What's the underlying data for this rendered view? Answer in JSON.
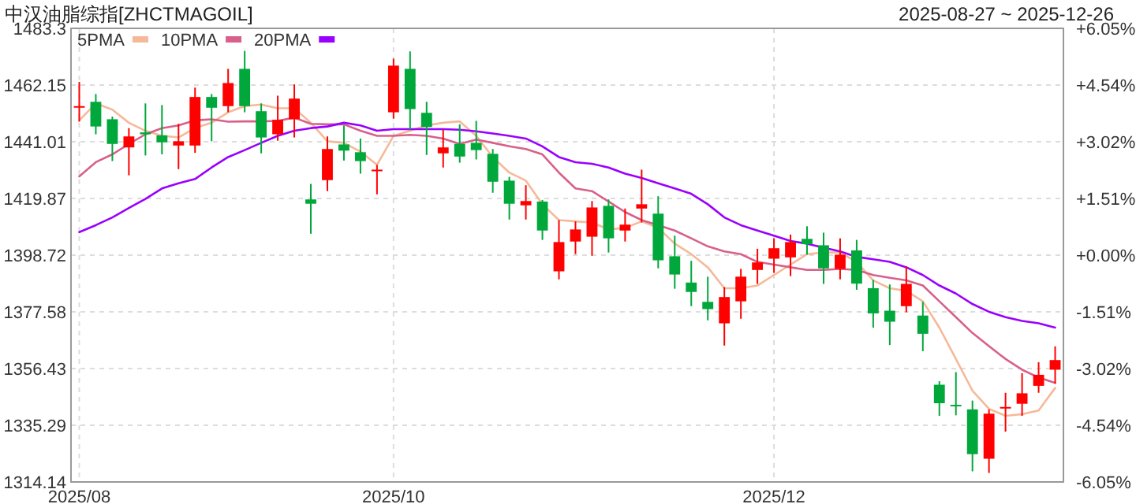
{
  "chart_data": {
    "type": "candlestick",
    "title": "中汉油脂综指[ZHCTMAGOIL]",
    "subtitle": "2025-08-27 ~ 2025-12-26",
    "categories": [
      "2025/08",
      null,
      null,
      null,
      null,
      null,
      null,
      null,
      null,
      null,
      null,
      null,
      null,
      null,
      null,
      null,
      null,
      null,
      null,
      "2025/10",
      null,
      null,
      null,
      null,
      null,
      null,
      null,
      null,
      null,
      null,
      null,
      null,
      null,
      null,
      null,
      null,
      null,
      null,
      null,
      null,
      null,
      null,
      "2025/12",
      null,
      null,
      null,
      null,
      null,
      null,
      null,
      null,
      null,
      null,
      null,
      null,
      null,
      null,
      null,
      null,
      null
    ],
    "ohlc": [
      [
        1453.9,
        1463.3,
        1448.5,
        1454.3
      ],
      [
        1455.9,
        1458.8,
        1443.8,
        1446.7
      ],
      [
        1449.4,
        1450.4,
        1433.8,
        1440.2
      ],
      [
        1438.9,
        1446.1,
        1428.5,
        1443.0
      ],
      [
        1444.5,
        1455.3,
        1435.9,
        1443.8
      ],
      [
        1443.4,
        1454.7,
        1436.3,
        1440.8
      ],
      [
        1439.6,
        1447.7,
        1430.8,
        1441.2
      ],
      [
        1439.6,
        1461.2,
        1436.9,
        1457.7
      ],
      [
        1457.7,
        1458.8,
        1441.2,
        1453.7
      ],
      [
        1454.3,
        1468.2,
        1452.0,
        1462.9
      ],
      [
        1468.2,
        1474.9,
        1452.0,
        1454.3
      ],
      [
        1452.4,
        1455.3,
        1436.7,
        1442.6
      ],
      [
        1443.8,
        1458.2,
        1441.4,
        1449.2
      ],
      [
        1449.4,
        1462.4,
        1442.6,
        1457.1
      ],
      [
        1419.5,
        1425.3,
        1406.7,
        1417.9
      ],
      [
        1426.7,
        1443.0,
        1422.6,
        1438.3
      ],
      [
        1440.0,
        1447.1,
        1434.0,
        1437.7
      ],
      [
        1437.1,
        1442.2,
        1429.1,
        1433.8
      ],
      [
        1430.2,
        1432.4,
        1421.4,
        1430.6
      ],
      [
        1452.0,
        1472.0,
        1449.6,
        1469.4
      ],
      [
        1468.2,
        1474.7,
        1445.5,
        1453.2
      ],
      [
        1451.8,
        1455.9,
        1436.1,
        1446.5
      ],
      [
        1436.7,
        1445.5,
        1431.4,
        1438.9
      ],
      [
        1440.2,
        1447.5,
        1433.2,
        1435.5
      ],
      [
        1440.6,
        1448.8,
        1434.4,
        1437.9
      ],
      [
        1436.5,
        1438.3,
        1422.0,
        1426.1
      ],
      [
        1426.5,
        1427.9,
        1412.0,
        1417.9
      ],
      [
        1417.3,
        1424.8,
        1412.0,
        1418.9
      ],
      [
        1418.7,
        1419.3,
        1404.4,
        1407.9
      ],
      [
        1392.7,
        1411.8,
        1389.7,
        1403.6
      ],
      [
        1403.8,
        1411.3,
        1399.1,
        1408.3
      ],
      [
        1405.6,
        1418.9,
        1398.5,
        1416.5
      ],
      [
        1417.1,
        1419.5,
        1399.7,
        1405.0
      ],
      [
        1407.9,
        1416.1,
        1403.8,
        1410.1
      ],
      [
        1416.1,
        1430.6,
        1410.9,
        1417.7
      ],
      [
        1414.2,
        1420.7,
        1393.8,
        1396.8
      ],
      [
        1398.3,
        1406.0,
        1386.2,
        1391.5
      ],
      [
        1388.5,
        1396.6,
        1379.7,
        1385.0
      ],
      [
        1381.3,
        1390.7,
        1374.4,
        1378.6
      ],
      [
        1373.3,
        1386.8,
        1365.0,
        1383.1
      ],
      [
        1381.5,
        1393.6,
        1375.0,
        1390.7
      ],
      [
        1393.2,
        1401.1,
        1388.0,
        1396.0
      ],
      [
        1397.4,
        1405.0,
        1392.1,
        1401.3
      ],
      [
        1397.9,
        1406.4,
        1390.9,
        1403.6
      ],
      [
        1404.8,
        1409.5,
        1398.9,
        1402.8
      ],
      [
        1402.4,
        1407.1,
        1388.0,
        1393.8
      ],
      [
        1393.6,
        1405.0,
        1389.7,
        1398.9
      ],
      [
        1400.5,
        1404.4,
        1385.8,
        1388.1
      ],
      [
        1386.4,
        1389.5,
        1371.7,
        1377.0
      ],
      [
        1378.0,
        1387.8,
        1365.2,
        1373.9
      ],
      [
        1379.7,
        1394.6,
        1377.4,
        1388.0
      ],
      [
        1376.2,
        1381.3,
        1362.9,
        1369.4
      ],
      [
        1350.4,
        1351.7,
        1338.8,
        1343.5
      ],
      [
        1342.9,
        1355.1,
        1339.0,
        1342.5
      ],
      [
        1341.2,
        1344.5,
        1318.1,
        1324.5
      ],
      [
        1322.8,
        1341.2,
        1317.5,
        1339.6
      ],
      [
        1341.7,
        1347.4,
        1332.9,
        1342.1
      ],
      [
        1343.3,
        1354.7,
        1338.8,
        1347.2
      ],
      [
        1350.0,
        1358.8,
        1347.4,
        1354.1
      ],
      [
        1356.0,
        1364.7,
        1350.8,
        1359.6
      ]
    ],
    "colors": [
      "#ff0000",
      "#00a83b",
      "#00a83b",
      "#ff0000",
      "#00a83b",
      "#00a83b",
      "#ff0000",
      "#ff0000",
      "#00a83b",
      "#ff0000",
      "#00a83b",
      "#00a83b",
      "#ff0000",
      "#ff0000",
      "#00a83b",
      "#ff0000",
      "#00a83b",
      "#00a83b",
      "#ff0000",
      "#ff0000",
      "#00a83b",
      "#00a83b",
      "#ff0000",
      "#00a83b",
      "#00a83b",
      "#00a83b",
      "#00a83b",
      "#ff0000",
      "#00a83b",
      "#ff0000",
      "#ff0000",
      "#ff0000",
      "#00a83b",
      "#ff0000",
      "#ff0000",
      "#00a83b",
      "#00a83b",
      "#00a83b",
      "#00a83b",
      "#ff0000",
      "#ff0000",
      "#ff0000",
      "#ff0000",
      "#ff0000",
      "#00a83b",
      "#00a83b",
      "#ff0000",
      "#00a83b",
      "#00a83b",
      "#00a83b",
      "#ff0000",
      "#00a83b",
      "#00a83b",
      "#00a83b",
      "#00a83b",
      "#ff0000",
      "#ff0000",
      "#ff0000",
      "#ff0000",
      "#ff0000"
    ],
    "series": [
      {
        "name": "5PMA",
        "type": "line",
        "color": "#f5b999",
        "values": [
          1449.0,
          1455.3,
          1453.0,
          1448.1,
          1445.1,
          1443.2,
          1442.6,
          1446.1,
          1448.1,
          1452.0,
          1454.3,
          1454.9,
          1453.5,
          1453.5,
          1448.1,
          1441.2,
          1440.6,
          1437.3,
          1432.4,
          1443.2,
          1445.1,
          1447.1,
          1448.1,
          1448.6,
          1443.2,
          1435.3,
          1429.5,
          1426.5,
          1417.7,
          1411.8,
          1411.3,
          1410.9,
          1408.3,
          1408.9,
          1411.3,
          1408.9,
          1403.0,
          1399.1,
          1394.2,
          1386.4,
          1386.4,
          1387.4,
          1391.3,
          1395.2,
          1399.1,
          1399.7,
          1399.7,
          1396.2,
          1389.3,
          1386.4,
          1385.4,
          1381.5,
          1371.7,
          1360.0,
          1348.2,
          1341.4,
          1338.8,
          1339.4,
          1340.8,
          1349.2
        ]
      },
      {
        "name": "10PMA",
        "type": "line",
        "color": "#d8608a",
        "values": [
          1428.1,
          1433.4,
          1436.3,
          1440.2,
          1443.8,
          1446.1,
          1447.1,
          1449.0,
          1449.4,
          1448.5,
          1448.6,
          1448.6,
          1448.8,
          1450.0,
          1447.7,
          1447.5,
          1447.5,
          1445.1,
          1443.2,
          1443.2,
          1443.6,
          1443.2,
          1442.2,
          1440.2,
          1441.8,
          1440.6,
          1439.3,
          1438.3,
          1436.3,
          1429.5,
          1423.6,
          1422.6,
          1418.7,
          1414.8,
          1411.8,
          1409.9,
          1407.9,
          1405.0,
          1402.0,
          1400.1,
          1399.1,
          1396.2,
          1395.2,
          1394.2,
          1393.2,
          1393.2,
          1393.6,
          1393.2,
          1391.3,
          1390.3,
          1389.3,
          1387.4,
          1381.5,
          1375.6,
          1369.7,
          1364.8,
          1360.0,
          1356.0,
          1353.1,
          1351.1
        ]
      },
      {
        "name": "20PMA",
        "type": "line",
        "color": "#9900ff",
        "values": [
          1407.3,
          1409.9,
          1412.8,
          1416.3,
          1419.7,
          1423.6,
          1425.5,
          1427.1,
          1431.4,
          1435.3,
          1437.9,
          1440.6,
          1443.2,
          1445.1,
          1446.1,
          1446.7,
          1448.1,
          1447.1,
          1445.1,
          1445.7,
          1445.7,
          1445.7,
          1445.7,
          1445.5,
          1444.9,
          1444.1,
          1443.2,
          1442.2,
          1439.3,
          1435.3,
          1433.4,
          1432.8,
          1431.4,
          1429.1,
          1427.5,
          1425.5,
          1423.6,
          1421.6,
          1417.7,
          1412.8,
          1409.9,
          1407.9,
          1406.0,
          1404.0,
          1403.0,
          1401.5,
          1400.1,
          1398.1,
          1397.2,
          1396.2,
          1394.2,
          1391.3,
          1387.4,
          1384.4,
          1380.5,
          1377.6,
          1375.6,
          1374.2,
          1373.3,
          1371.7
        ]
      }
    ],
    "ylim": [
      1314.14,
      1483.3
    ],
    "yticks": [
      1314.14,
      1335.29,
      1356.43,
      1377.58,
      1398.72,
      1419.87,
      1441.01,
      1462.15,
      1483.3
    ],
    "y2lim": [
      -6.05,
      6.05
    ],
    "y2ticks": [
      {
        "value": -6.05,
        "label": "-6.05%"
      },
      {
        "value": -4.54,
        "label": "-4.54%"
      },
      {
        "value": -3.02,
        "label": "-3.02%"
      },
      {
        "value": -1.51,
        "label": "-1.51%"
      },
      {
        "value": 0,
        "label": "+0.00%"
      },
      {
        "value": 1.51,
        "label": "+1.51%"
      },
      {
        "value": 3.02,
        "label": "+3.02%"
      },
      {
        "value": 4.54,
        "label": "+4.54%"
      },
      {
        "value": 6.05,
        "label": "+6.05%"
      }
    ],
    "grid": true,
    "legend": "top left"
  }
}
